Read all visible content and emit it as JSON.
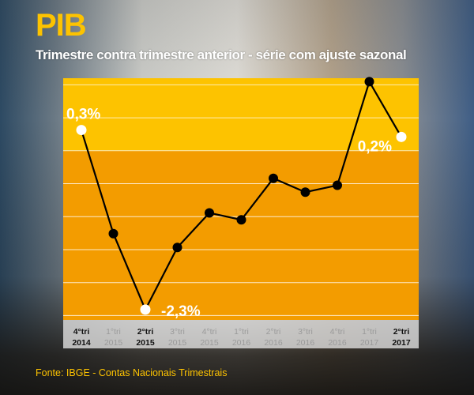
{
  "title": "PIB",
  "subtitle": "Trimestre contra trimestre anterior - série com ajuste sazonal",
  "source": "Fonte: IBGE - Contas Nacionais Trimestrais",
  "colors": {
    "title": "#FDC300",
    "positive_band": "#FDC300",
    "negative_band": "#F39C00",
    "line": "#000000",
    "highlight_point": "#FFFFFF"
  },
  "chart_data": {
    "type": "line",
    "title": "PIB",
    "subtitle": "Trimestre contra trimestre anterior - série com ajuste sazonal",
    "categories": [
      {
        "q": "4°tri",
        "y": "2014",
        "bold": true
      },
      {
        "q": "1°tri",
        "y": "2015",
        "bold": false
      },
      {
        "q": "2°tri",
        "y": "2015",
        "bold": true
      },
      {
        "q": "3°tri",
        "y": "2015",
        "bold": false
      },
      {
        "q": "4°tri",
        "y": "2015",
        "bold": false
      },
      {
        "q": "1°tri",
        "y": "2016",
        "bold": false
      },
      {
        "q": "2°tri",
        "y": "2016",
        "bold": false
      },
      {
        "q": "3°tri",
        "y": "2016",
        "bold": false
      },
      {
        "q": "4°tri",
        "y": "2016",
        "bold": false
      },
      {
        "q": "1°tri",
        "y": "2017",
        "bold": false
      },
      {
        "q": "2°tri",
        "y": "2017",
        "bold": true
      }
    ],
    "values": [
      0.3,
      -1.2,
      -2.3,
      -1.4,
      -0.9,
      -1.0,
      -0.4,
      -0.6,
      -0.5,
      1.0,
      0.2
    ],
    "highlighted": [
      0,
      2,
      10
    ],
    "data_labels": {
      "0": "0,3%",
      "2": "-2,3%",
      "10": "0,2%"
    },
    "ylim": [
      -2.45,
      1.05
    ],
    "grid": true,
    "legend": "none"
  }
}
